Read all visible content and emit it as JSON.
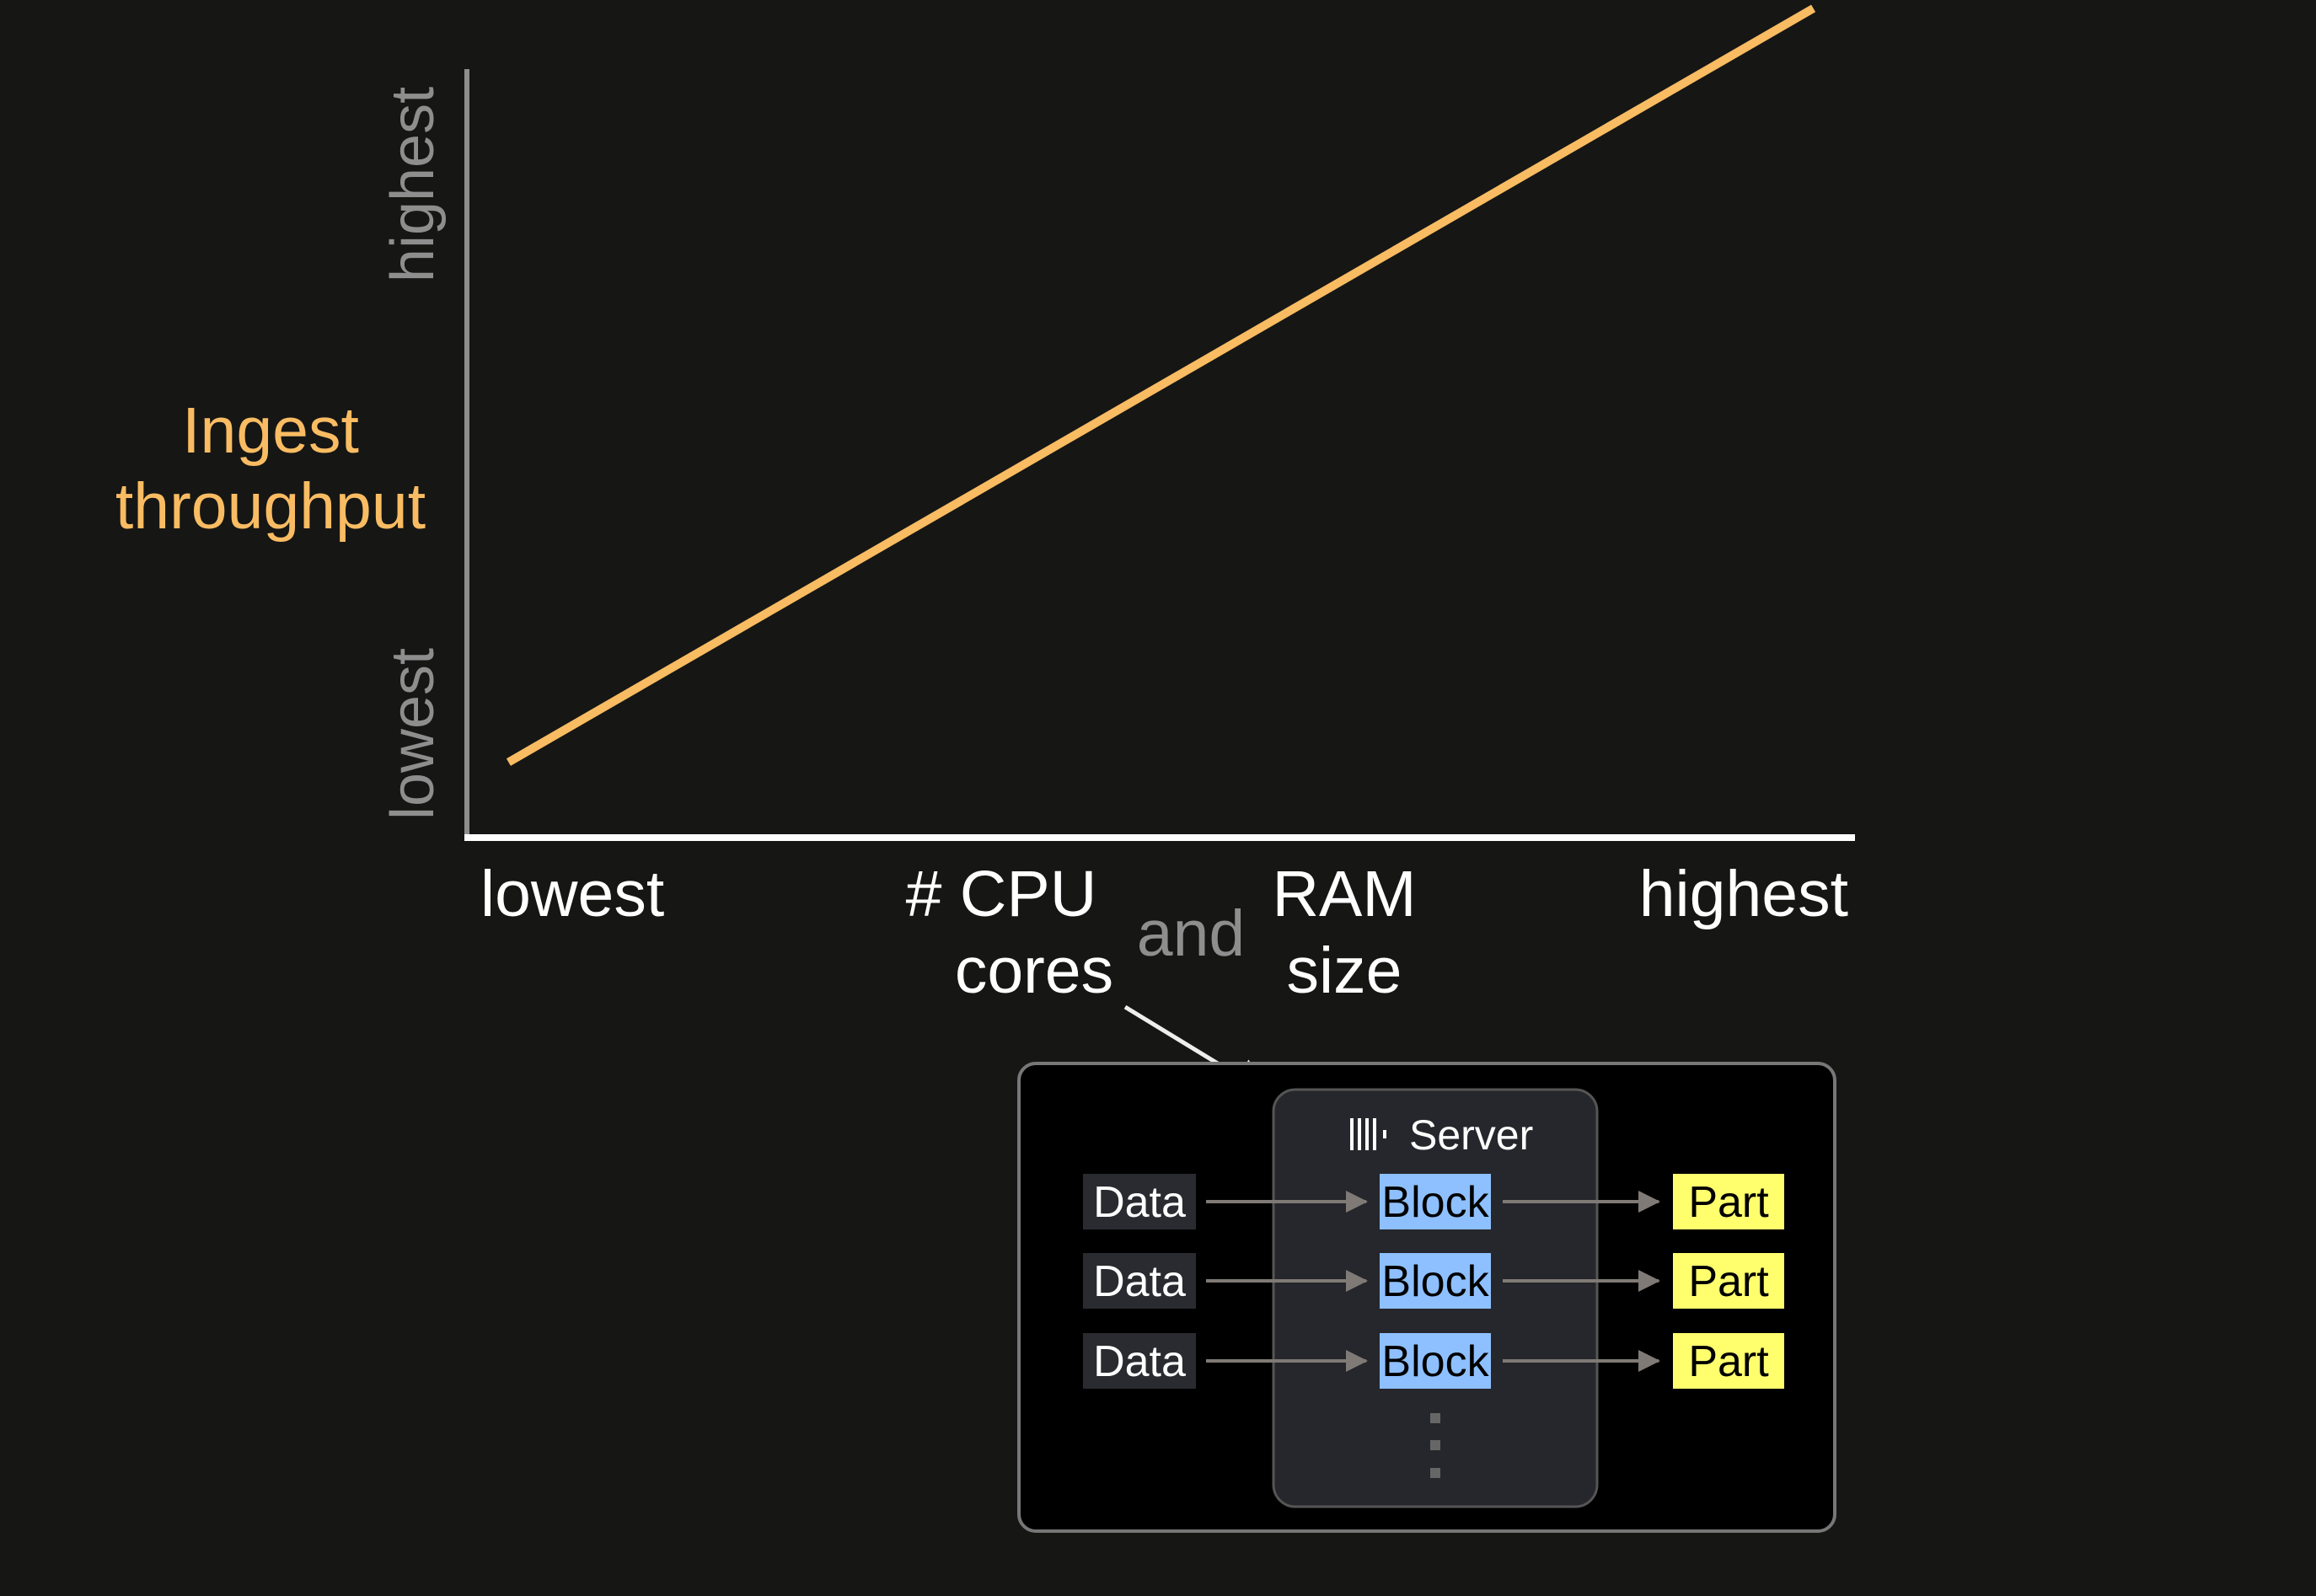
{
  "chart_data": {
    "type": "line",
    "ylabel": [
      "Ingest",
      "throughput"
    ],
    "y_ticks": [
      "lowest",
      "highest"
    ],
    "x_ticks": [
      "lowest",
      "highest"
    ],
    "xlabel": {
      "part1": [
        "# CPU",
        "cores"
      ],
      "connector": "and",
      "part2": [
        "RAM",
        "size"
      ]
    },
    "series": [
      {
        "x": [
          0.03,
          0.97
        ],
        "y": [
          0.09,
          0.99
        ]
      }
    ],
    "xlim": [
      0,
      1
    ],
    "ylim": [
      0,
      1
    ],
    "grid": false,
    "colors": {
      "line": "#f9bc62",
      "ylabel": "#f9bc62",
      "y_axis": "#8e8e8e",
      "x_axis": "#ffffff",
      "y_ticks": "#8e8e8e",
      "connector": "#8e8e8e"
    }
  },
  "diagram": {
    "server": {
      "title": "Server",
      "icon": "clickhouse-logo-icon"
    },
    "rows": [
      {
        "data": "Data",
        "block": "Block",
        "part": "Part"
      },
      {
        "data": "Data",
        "block": "Block",
        "part": "Part"
      },
      {
        "data": "Data",
        "block": "Block",
        "part": "Part"
      }
    ],
    "colors": {
      "data_bg": "#2a2b30",
      "block_bg": "#8ec0ff",
      "part_bg": "#ffff6e",
      "arrow": "#7f7a75"
    }
  }
}
